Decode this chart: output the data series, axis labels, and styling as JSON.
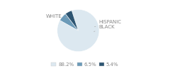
{
  "labels": [
    "WHITE",
    "HISPANIC",
    "BLACK"
  ],
  "sizes": [
    88.2,
    6.5,
    5.4
  ],
  "colors": [
    "#dce8f0",
    "#6b9ab8",
    "#2d5572"
  ],
  "legend_labels": [
    "88.2%",
    "6.5%",
    "5.4%"
  ],
  "legend_colors": [
    "#dce8f0",
    "#6b9ab8",
    "#2d5572"
  ],
  "background_color": "#ffffff",
  "text_color": "#888888",
  "font_size": 5.0,
  "startangle": 108
}
